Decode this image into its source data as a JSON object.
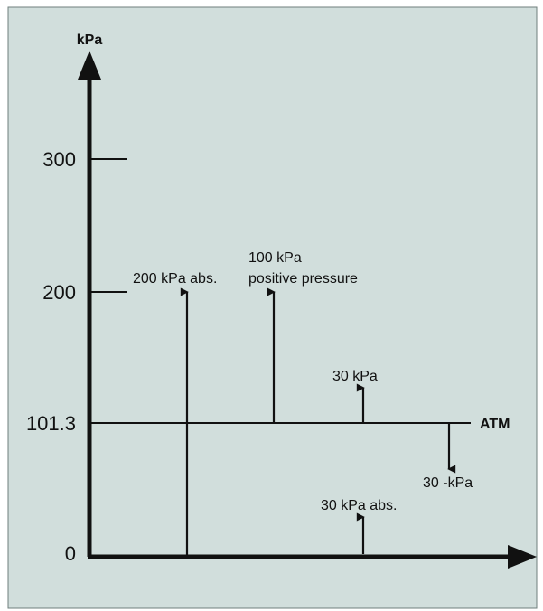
{
  "colors": {
    "background": "#d1dedc",
    "border": "#6f7f7c",
    "ink": "#111111"
  },
  "axis": {
    "y_label": "kPa"
  },
  "ticks": [
    {
      "label": "300",
      "value": 300
    },
    {
      "label": "200",
      "value": 200
    },
    {
      "label": "101.3",
      "value": 101.3
    },
    {
      "label": "0",
      "value": 0
    }
  ],
  "atm": {
    "label": "ATM",
    "value": 101.3
  },
  "arrows": [
    {
      "id": "abs-200",
      "label_lines": [
        "200 kPa abs."
      ],
      "from": 0,
      "to": 200
    },
    {
      "id": "positive-100",
      "label_lines": [
        "100 kPa",
        "positive pressure"
      ],
      "from": 101.3,
      "to": 200
    },
    {
      "id": "gauge-30",
      "label_lines": [
        "30 kPa"
      ],
      "from": 101.3,
      "to": 131.3
    },
    {
      "id": "vacuum-30",
      "label_lines": [
        "30 -kPa"
      ],
      "from": 101.3,
      "to": 71.3
    },
    {
      "id": "abs-30",
      "label_lines": [
        "30 kPa abs."
      ],
      "from": 0,
      "to": 30
    }
  ]
}
